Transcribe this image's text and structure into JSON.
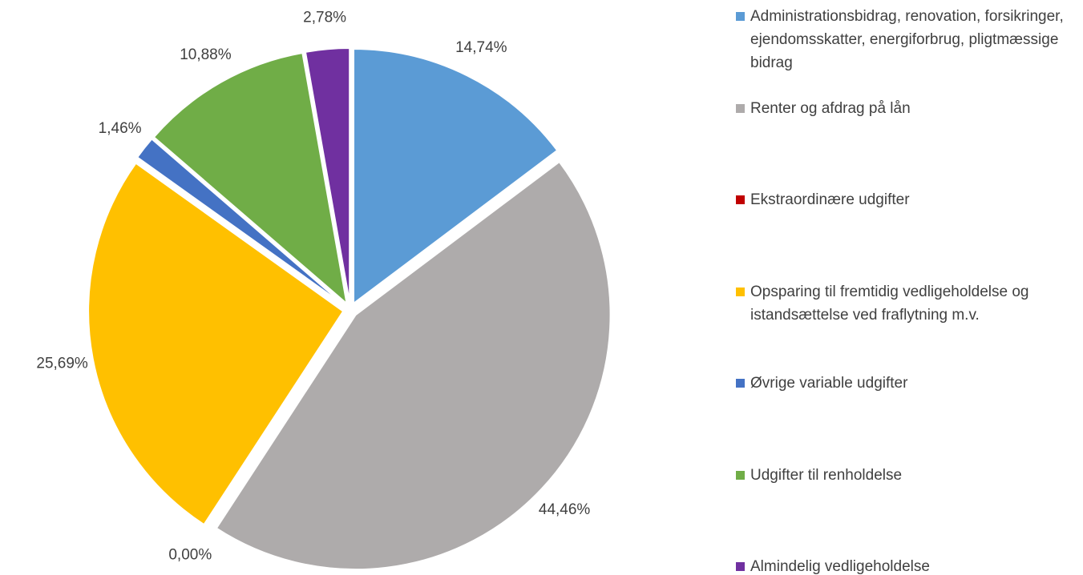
{
  "chart_data": {
    "type": "pie",
    "categories": [
      "Administrationsbidrag, renovation, forsikringer, ejendomsskatter, energiforbrug, pligtmæssige bidrag",
      "Renter og afdrag på lån",
      "Ekstraordinære udgifter",
      "Opsparing til fremtidig vedligeholdelse og istandsættelse ved fraflytning m.v.",
      "Øvrige variable udgifter",
      "Udgifter til renholdelse",
      "Almindelig vedligeholdelse"
    ],
    "values": [
      14.74,
      44.46,
      0.0,
      25.69,
      1.46,
      10.88,
      2.78
    ],
    "value_labels": [
      "14,74%",
      "44,46%",
      "0,00%",
      "25,69%",
      "1,46%",
      "10,88%",
      "2,78%"
    ],
    "colors": [
      "#5b9bd5",
      "#aeabab",
      "#c00000",
      "#ffc000",
      "#4472c4",
      "#70ad47",
      "#7030a0"
    ],
    "legend": "right"
  }
}
